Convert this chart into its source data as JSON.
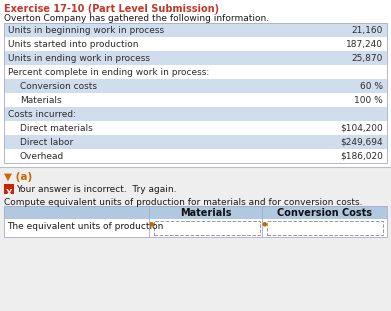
{
  "title": "Exercise 17-10 (Part Level Submission)",
  "subtitle": "Overton Company has gathered the following information.",
  "table_rows": [
    {
      "label": "Units in beginning work in process",
      "value": "21,160",
      "indent": 0
    },
    {
      "label": "Units started into production",
      "value": "187,240",
      "indent": 0
    },
    {
      "label": "Units in ending work in process",
      "value": "25,870",
      "indent": 0
    },
    {
      "label": "Percent complete in ending work in process:",
      "value": "",
      "indent": 0
    },
    {
      "label": "Conversion costs",
      "value": "60 %",
      "indent": 1
    },
    {
      "label": "Materials",
      "value": "100 %",
      "indent": 1
    },
    {
      "label": "Costs incurred:",
      "value": "",
      "indent": 0
    },
    {
      "label": "Direct materials",
      "value": "$104,200",
      "indent": 1
    },
    {
      "label": "Direct labor",
      "value": "$249,694",
      "indent": 1
    },
    {
      "label": "Overhead",
      "value": "$186,020",
      "indent": 1
    }
  ],
  "row_shading": [
    true,
    false,
    true,
    false,
    true,
    false,
    true,
    false,
    true,
    false
  ],
  "section_label": "▼ (a)",
  "incorrect_msg": "Your answer is incorrect.  Try again.",
  "compute_text": "Compute equivalent units of production for materials and for conversion costs.",
  "answer_header_col1": "Materials",
  "answer_header_col2": "Conversion Costs",
  "answer_row_label": "The equivalent units of production",
  "title_color": "#c0392b",
  "row_bg_light": "#cfdded",
  "row_bg_white": "#ffffff",
  "table_text_color": "#2c2c2c",
  "section_color": "#cc6600",
  "error_bg": "#cc2200",
  "answer_header_bg": "#b0c8e0",
  "lower_bg": "#eeeeee",
  "border_color": "#aaaacc"
}
